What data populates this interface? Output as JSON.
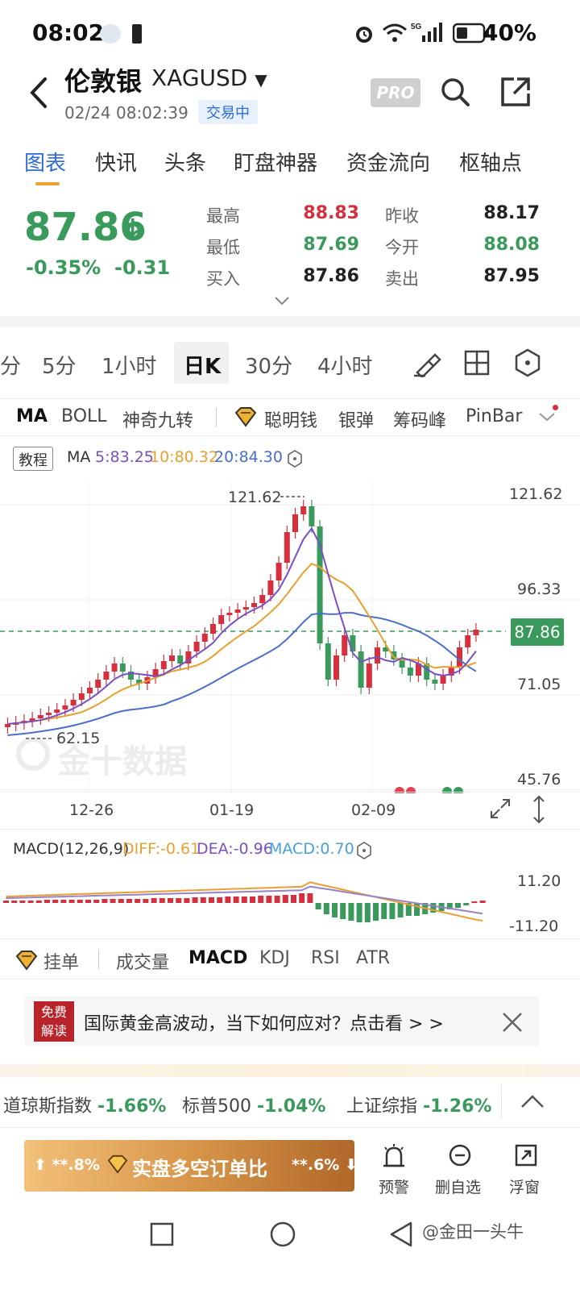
{
  "status_bar": {
    "time": "08:02",
    "battery": "40%"
  },
  "header": {
    "title": "伦敦银",
    "symbol": "XAGUSD",
    "datetime": "02/24 08:02:39",
    "market_status": "交易中",
    "pro_label": "PRO"
  },
  "tabs": [
    "图表",
    "快讯",
    "头条",
    "盯盘神器",
    "资金流向",
    "枢轴点"
  ],
  "quote": {
    "price": "87.86",
    "change_pct": "-0.35%",
    "change": "-0.31",
    "high_label": "最高",
    "high": "88.83",
    "low_label": "最低",
    "low": "87.69",
    "bid_label": "买入",
    "bid": "87.86",
    "prev_close_label": "昨收",
    "prev_close": "88.17",
    "open_label": "今开",
    "open": "88.08",
    "ask_label": "卖出",
    "ask": "87.95"
  },
  "periods": [
    "分",
    "5分",
    "1小时",
    "日K",
    "30分",
    "4小时"
  ],
  "indicators": [
    "MA",
    "BOLL",
    "神奇九转",
    "聪明钱",
    "银弹",
    "筹码峰",
    "PinBar"
  ],
  "ma_legend": {
    "tutorial": "教程",
    "label": "MA",
    "ma5": "5:83.25",
    "ma10": "10:80.32",
    "ma20": "20:84.30"
  },
  "main_chart": {
    "axis": [
      "121.62",
      "96.33",
      "71.05",
      "45.76"
    ],
    "current_price": "87.86",
    "max_label": "121.62",
    "min_label": "62.15",
    "dates": [
      "12-26",
      "01-19",
      "02-09"
    ],
    "watermark": "金十数据"
  },
  "macd_legend": {
    "label": "MACD(12,26,9)",
    "diff": "DIFF:-0.61",
    "dea": "DEA:-0.96",
    "macd": "MACD:0.70",
    "axis_top": "11.20",
    "axis_bottom": "-11.20"
  },
  "bottom_indicators": [
    "挂单",
    "成交量",
    "MACD",
    "KDJ",
    "RSI",
    "ATR"
  ],
  "ad": {
    "badge_line1": "免费",
    "badge_line2": "解读",
    "text": "国际黄金高波动，当下如何应对？点击看 > >"
  },
  "ticker": [
    {
      "name": "道琼斯指数",
      "value": "-1.66%"
    },
    {
      "name": "标普500",
      "value": "-1.04%"
    },
    {
      "name": "上证综指",
      "value": "-1.26%"
    }
  ],
  "action_bar": {
    "left": "**.8%",
    "center": "实盘多空订单比",
    "right": "**.6%",
    "alert": "预警",
    "remove": "删自选",
    "float": "浮窗"
  },
  "watermark_footer": "@金田一头牛",
  "colors": {
    "up": "#d6303f",
    "down": "#3a9a5c",
    "accent": "#2f6bd8",
    "ma5": "#7b4fc4",
    "ma10": "#e8a030",
    "ma20": "#4a6fc8"
  }
}
